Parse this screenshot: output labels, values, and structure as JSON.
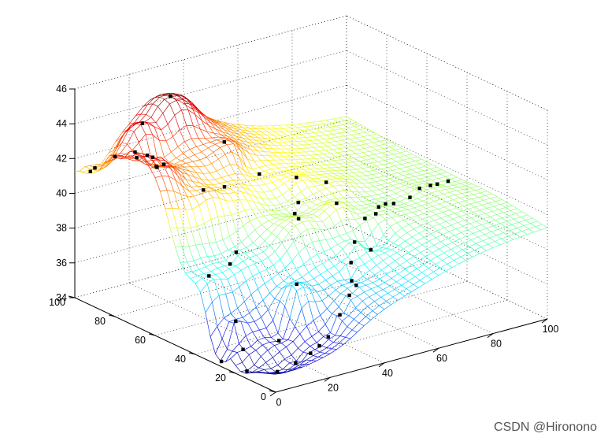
{
  "chart_data": {
    "type": "surface-mesh-3d",
    "title": "",
    "xlabel": "",
    "ylabel": "",
    "zlabel": "",
    "xlim": [
      0,
      100
    ],
    "ylim": [
      0,
      100
    ],
    "zlim": [
      34,
      46
    ],
    "x_ticks": [
      "0",
      "20",
      "40",
      "60",
      "80",
      "100"
    ],
    "y_ticks": [
      "0",
      "20",
      "40",
      "60",
      "80",
      "100"
    ],
    "z_ticks": [
      "34",
      "36",
      "38",
      "40",
      "42",
      "44",
      "46"
    ],
    "grid": true,
    "colormap": "jet",
    "surface_features": [
      {
        "kind": "peak",
        "x": 0,
        "y": 70,
        "z": 44
      },
      {
        "kind": "trough",
        "x": 0,
        "y": 27,
        "z": 34.3
      },
      {
        "kind": "ridge",
        "from": [
          30,
          10,
          40.2
        ],
        "to": [
          100,
          45,
          39.6
        ]
      },
      {
        "kind": "plateau",
        "x": 22,
        "y": 100,
        "z": 44.5
      },
      {
        "kind": "edge",
        "x": 0,
        "y": 100,
        "z": 41.2
      }
    ],
    "scatter_points": [
      [
        0,
        70,
        44.0
      ],
      [
        3,
        68,
        43.8
      ],
      [
        5,
        68,
        43.6
      ],
      [
        0,
        80,
        43.2
      ],
      [
        8,
        80,
        42.8
      ],
      [
        10,
        73,
        42.6
      ],
      [
        14,
        78,
        42.1
      ],
      [
        18,
        80,
        42.0
      ],
      [
        16,
        88,
        44.0
      ],
      [
        30,
        93,
        44.7
      ],
      [
        38,
        77,
        42.6
      ],
      [
        45,
        69,
        40.9
      ],
      [
        27,
        62,
        41.3
      ],
      [
        17,
        59,
        41.7
      ],
      [
        5,
        99,
        41.1
      ],
      [
        0,
        90,
        42.0
      ],
      [
        5,
        40,
        38.3
      ],
      [
        18,
        44,
        38.9
      ],
      [
        15,
        43,
        38.4
      ],
      [
        6,
        28,
        36.3
      ],
      [
        16,
        20,
        35.2
      ],
      [
        5,
        23,
        35.0
      ],
      [
        0,
        27,
        34.3
      ],
      [
        2,
        17,
        34.2
      ],
      [
        8,
        10,
        34.3
      ],
      [
        14,
        9,
        34.6
      ],
      [
        18,
        7,
        35.1
      ],
      [
        22,
        8,
        35.3
      ],
      [
        26,
        9,
        35.6
      ],
      [
        31,
        10,
        36.6
      ],
      [
        36,
        12,
        37.4
      ],
      [
        40,
        14,
        37.7
      ],
      [
        42,
        19,
        37.6
      ],
      [
        44,
        22,
        38.4
      ],
      [
        49,
        27,
        39.1
      ],
      [
        55,
        27,
        38.4
      ],
      [
        58,
        34,
        39.7
      ],
      [
        62,
        34,
        39.8
      ],
      [
        66,
        38,
        39.8
      ],
      [
        70,
        40,
        39.7
      ],
      [
        73,
        40,
        39.6
      ],
      [
        79,
        40,
        39.7
      ],
      [
        84,
        42,
        39.9
      ],
      [
        88,
        42,
        39.9
      ],
      [
        92,
        44,
        39.7
      ],
      [
        96,
        44,
        39.7
      ],
      [
        52,
        40,
        40.5
      ],
      [
        46,
        51,
        40.2
      ],
      [
        52,
        60,
        40.9
      ],
      [
        60,
        56,
        40.5
      ],
      [
        44,
        50,
        39.7
      ],
      [
        38,
        40,
        40.2
      ],
      [
        24,
        22,
        38.0
      ]
    ]
  },
  "watermark": "CSDN @Hironono",
  "colors": {
    "low": "#0000ff",
    "mid": "#00ffff",
    "high": "#ff0000"
  }
}
